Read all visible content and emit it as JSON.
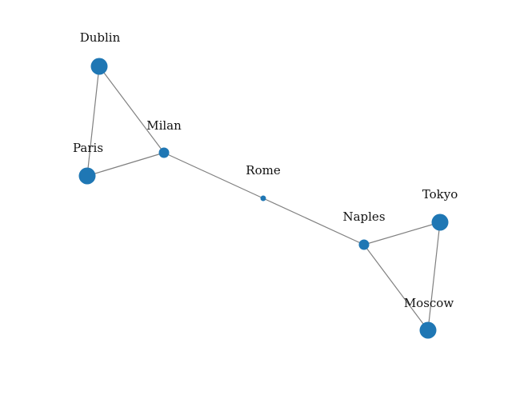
{
  "colors": {
    "node": "#1f77b4",
    "edge": "#808080",
    "label": "#111111",
    "background": "#ffffff"
  },
  "graph": {
    "nodes": [
      {
        "id": "dublin",
        "label": "Dublin"
      },
      {
        "id": "milan",
        "label": "Milan"
      },
      {
        "id": "paris",
        "label": "Paris"
      },
      {
        "id": "rome",
        "label": "Rome"
      },
      {
        "id": "naples",
        "label": "Naples"
      },
      {
        "id": "tokyo",
        "label": "Tokyo"
      },
      {
        "id": "moscow",
        "label": "Moscow"
      }
    ],
    "edges": [
      {
        "source": "dublin",
        "target": "milan"
      },
      {
        "source": "dublin",
        "target": "paris"
      },
      {
        "source": "paris",
        "target": "milan"
      },
      {
        "source": "milan",
        "target": "rome"
      },
      {
        "source": "rome",
        "target": "naples"
      },
      {
        "source": "naples",
        "target": "tokyo"
      },
      {
        "source": "naples",
        "target": "moscow"
      },
      {
        "source": "tokyo",
        "target": "moscow"
      }
    ]
  }
}
